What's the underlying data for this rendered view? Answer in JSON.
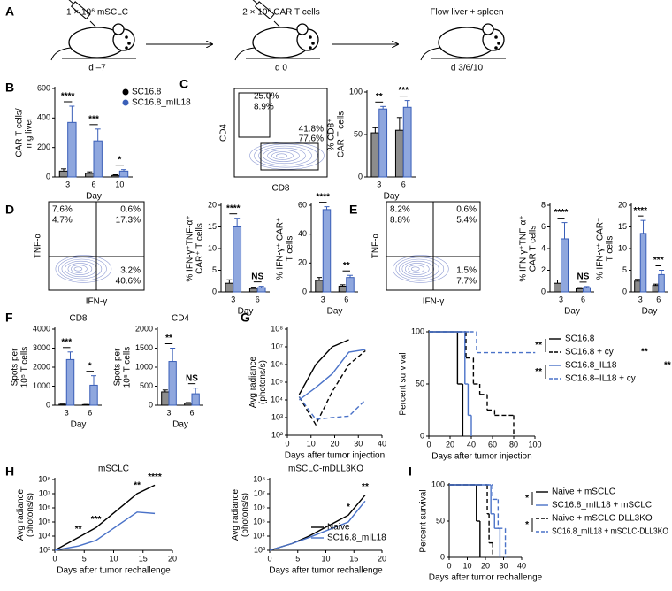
{
  "panel_labels": [
    "A",
    "B",
    "C",
    "D",
    "E",
    "F",
    "G",
    "H",
    "I"
  ],
  "schematic": {
    "steps": [
      {
        "label": "1 × 10⁶ mSCLC",
        "day": "d –7"
      },
      {
        "label": "2 × 10⁶ CAR T cells",
        "day": "d 0"
      },
      {
        "label": "Flow liver + spleen",
        "day": "d 3/6/10"
      }
    ]
  },
  "chart_data": [
    {
      "type": "bar",
      "ylabel": [
        "CAR T cells/",
        "mg liver"
      ],
      "xlabel": "Day",
      "categories": [
        "3",
        "6",
        "10"
      ],
      "ylim": [
        0,
        600
      ],
      "yticks": [
        0,
        200,
        400,
        600
      ],
      "legend": "upper right",
      "series": [
        {
          "name": "SC16.8",
          "color": "#8c8c8c",
          "edge": "#000000",
          "values": [
            40,
            25,
            10
          ],
          "errors": [
            15,
            10,
            5
          ]
        },
        {
          "name": "SC16.8_mIL18",
          "color": "#8fa7de",
          "edge": "#3a5fb8",
          "values": [
            370,
            245,
            40
          ],
          "errors": [
            110,
            80,
            10
          ]
        }
      ],
      "significance": [
        "****",
        "***",
        "*"
      ]
    },
    {
      "type": "flow",
      "xlabel": "CD8",
      "ylabel": "CD4",
      "annotations": [
        "25.0%",
        "8.9%",
        "41.8%",
        "77.6%"
      ],
      "annotation_colors": [
        "#000000",
        "#3a5fb8",
        "#000000",
        "#3a5fb8"
      ]
    },
    {
      "type": "bar",
      "ylabel": [
        "% CD8⁺",
        "CAR T cells"
      ],
      "xlabel": "Day",
      "categories": [
        "3",
        "6"
      ],
      "ylim": [
        0,
        100
      ],
      "yticks": [
        0,
        50,
        100
      ],
      "series": [
        {
          "color": "#8c8c8c",
          "edge": "#000000",
          "values": [
            52,
            55
          ],
          "errors": [
            6,
            15
          ]
        },
        {
          "color": "#8fa7de",
          "edge": "#3a5fb8",
          "values": [
            80,
            82
          ],
          "errors": [
            3,
            8
          ]
        }
      ],
      "significance": [
        "**",
        "***"
      ]
    },
    {
      "type": "flow",
      "xlabel": "IFN-γ",
      "ylabel": "TNF-α",
      "annotations": [
        "7.6%",
        "4.7%",
        "0.6%",
        "17.3%",
        "3.2%",
        "40.6%"
      ],
      "annotation_colors": [
        "#000000",
        "#3a5fb8",
        "#000000",
        "#3a5fb8",
        "#000000",
        "#3a5fb8"
      ]
    },
    {
      "type": "bar",
      "ylabel": [
        "% IFN-γ⁺TNF-α⁺",
        "CAR⁺ T cells"
      ],
      "xlabel": "Day",
      "categories": [
        "3",
        "6"
      ],
      "ylim": [
        0,
        20
      ],
      "yticks": [
        0,
        5,
        10,
        15,
        20
      ],
      "series": [
        {
          "color": "#8c8c8c",
          "edge": "#000000",
          "values": [
            2,
            0.8
          ],
          "errors": [
            0.8,
            0.3
          ]
        },
        {
          "color": "#8fa7de",
          "edge": "#3a5fb8",
          "values": [
            15,
            1
          ],
          "errors": [
            2,
            0.3
          ]
        }
      ],
      "significance": [
        "****",
        "NS"
      ]
    },
    {
      "type": "bar",
      "ylabel": [
        "% IFN-γ⁺ CAR⁺",
        "T cells"
      ],
      "xlabel": "Day",
      "categories": [
        "3",
        "6"
      ],
      "ylim": [
        0,
        60
      ],
      "yticks": [
        0,
        20,
        40,
        60
      ],
      "series": [
        {
          "color": "#8c8c8c",
          "edge": "#000000",
          "values": [
            8,
            4
          ],
          "errors": [
            2,
            1
          ]
        },
        {
          "color": "#8fa7de",
          "edge": "#3a5fb8",
          "values": [
            57,
            10
          ],
          "errors": [
            2,
            1.5
          ]
        }
      ],
      "significance": [
        "****",
        "**"
      ]
    },
    {
      "type": "flow",
      "xlabel": "IFN-γ",
      "ylabel": "TNF-α",
      "annotations": [
        "8.2%",
        "8.8%",
        "0.6%",
        "5.4%",
        "1.5%",
        "7.7%"
      ],
      "annotation_colors": [
        "#000000",
        "#3a5fb8",
        "#000000",
        "#3a5fb8",
        "#000000",
        "#3a5fb8"
      ]
    },
    {
      "type": "bar",
      "ylabel": [
        "% IFN-γ⁺TNF-α⁺",
        "CAR T cells"
      ],
      "xlabel": "Day",
      "categories": [
        "3",
        "6"
      ],
      "ylim": [
        0,
        8
      ],
      "yticks": [
        0,
        2,
        4,
        6,
        8
      ],
      "series": [
        {
          "color": "#8c8c8c",
          "edge": "#000000",
          "values": [
            0.8,
            0.3
          ],
          "errors": [
            0.3,
            0.1
          ]
        },
        {
          "color": "#8fa7de",
          "edge": "#3a5fb8",
          "values": [
            4.9,
            0.4
          ],
          "errors": [
            1.5,
            0.1
          ]
        }
      ],
      "significance": [
        "****",
        "NS"
      ]
    },
    {
      "type": "bar",
      "ylabel": [
        "% IFN-γ⁺ CAR⁻",
        "T cells"
      ],
      "xlabel": "Day",
      "categories": [
        "3",
        "6"
      ],
      "ylim": [
        0,
        20
      ],
      "yticks": [
        0,
        5,
        10,
        15,
        20
      ],
      "series": [
        {
          "color": "#8c8c8c",
          "edge": "#000000",
          "values": [
            2.5,
            1.5
          ],
          "errors": [
            0.4,
            0.3
          ]
        },
        {
          "color": "#8fa7de",
          "edge": "#3a5fb8",
          "values": [
            13.5,
            4
          ],
          "errors": [
            3,
            1
          ]
        }
      ],
      "significance": [
        "****",
        "***"
      ]
    },
    {
      "type": "bar",
      "title": "CD8",
      "ylabel": [
        "Spots per",
        "10⁵ T cells"
      ],
      "xlabel": "Day",
      "categories": [
        "3",
        "6"
      ],
      "ylim": [
        0,
        4000
      ],
      "yticks": [
        0,
        1000,
        2000,
        3000,
        4000
      ],
      "series": [
        {
          "color": "#8c8c8c",
          "edge": "#000000",
          "values": [
            50,
            30
          ],
          "errors": [
            10,
            10
          ]
        },
        {
          "color": "#8fa7de",
          "edge": "#3a5fb8",
          "values": [
            2400,
            1050
          ],
          "errors": [
            400,
            500
          ]
        }
      ],
      "significance": [
        "***",
        "*"
      ]
    },
    {
      "type": "bar",
      "title": "CD4",
      "ylabel": [
        "Spots per",
        "10⁵ T cells"
      ],
      "xlabel": "Day",
      "categories": [
        "3",
        "6"
      ],
      "ylim": [
        0,
        2000
      ],
      "yticks": [
        0,
        500,
        1000,
        1500,
        2000
      ],
      "series": [
        {
          "color": "#8c8c8c",
          "edge": "#000000",
          "values": [
            350,
            50
          ],
          "errors": [
            50,
            20
          ]
        },
        {
          "color": "#8fa7de",
          "edge": "#3a5fb8",
          "values": [
            1150,
            300
          ],
          "errors": [
            350,
            150
          ]
        }
      ],
      "significance": [
        "**",
        "NS"
      ]
    },
    {
      "type": "line",
      "log_y": true,
      "ylabel": [
        "Avg radiance",
        "(photons/s)"
      ],
      "xlabel": "Days after tumor injection",
      "xlim": [
        0,
        40
      ],
      "xticks": [
        0,
        10,
        20,
        30,
        40
      ],
      "ylim": [
        100,
        100000000
      ],
      "yticks": [
        {
          "value": 100,
          "label": "10²"
        },
        {
          "value": 1000,
          "label": "10³"
        },
        {
          "value": 10000,
          "label": "10⁴"
        },
        {
          "value": 100000,
          "label": "10⁵"
        },
        {
          "value": 1000000,
          "label": "10⁶"
        },
        {
          "value": 10000000,
          "label": "10⁷"
        },
        {
          "value": 100000000,
          "label": "10⁸"
        }
      ],
      "x": [
        5,
        12,
        19,
        26,
        33
      ],
      "series": [
        {
          "color": "#000000",
          "dash": false,
          "values": [
            20000,
            1000000,
            10000000,
            25000000,
            null
          ]
        },
        {
          "color": "#000000",
          "dash": true,
          "values": [
            15000,
            400,
            30000,
            1000000,
            6000000
          ]
        },
        {
          "color": "#4a72c8",
          "dash": false,
          "values": [
            10000,
            50000,
            300000,
            5000000,
            7000000
          ]
        },
        {
          "color": "#4a72c8",
          "dash": true,
          "values": [
            15000,
            800,
            1000,
            1200,
            10000
          ]
        }
      ]
    },
    {
      "type": "survival",
      "ylabel": "Percent survival",
      "xlabel": "Days after tumor injection",
      "xlim": [
        0,
        100
      ],
      "xticks": [
        0,
        20,
        40,
        60,
        80,
        100
      ],
      "ylim": [
        0,
        100
      ],
      "yticks": [
        0,
        50,
        100
      ],
      "series": [
        {
          "name": "SC16.8",
          "color": "#000000",
          "dash": false,
          "x": [
            0,
            27,
            32
          ],
          "values": [
            100,
            50,
            0
          ]
        },
        {
          "name": "SC16.8 + cy",
          "color": "#000000",
          "dash": true,
          "x": [
            0,
            35,
            42,
            48,
            55,
            62,
            80
          ],
          "values": [
            100,
            75,
            50,
            40,
            25,
            20,
            0
          ]
        },
        {
          "name": "SC16.8_IL18",
          "color": "#4a72c8",
          "dash": false,
          "x": [
            0,
            34,
            37,
            40
          ],
          "values": [
            100,
            50,
            20,
            0
          ]
        },
        {
          "name": "SC16.8–IL18 + cy",
          "color": "#4a72c8",
          "dash": true,
          "x": [
            0,
            38,
            45,
            100
          ],
          "values": [
            100,
            100,
            80,
            80
          ]
        }
      ],
      "annotations": [
        "**",
        "**",
        "**",
        "**"
      ]
    },
    {
      "type": "line",
      "log_y": true,
      "title": "mSCLC",
      "ylabel": [
        "Avg radiance",
        "(photons/s)"
      ],
      "xlabel": "Days after tumor rechallenge",
      "xlim": [
        0,
        20
      ],
      "xticks": [
        0,
        5,
        10,
        15,
        20
      ],
      "ylim": [
        1000,
        100000000
      ],
      "yticks": [
        {
          "value": 1000,
          "label": "10³"
        },
        {
          "value": 10000,
          "label": "10⁴"
        },
        {
          "value": 100000,
          "label": "10⁵"
        },
        {
          "value": 1000000,
          "label": "10⁶"
        },
        {
          "value": 10000000,
          "label": "10⁷"
        },
        {
          "value": 100000000,
          "label": "10⁸"
        }
      ],
      "x": [
        0,
        4,
        7,
        14,
        17
      ],
      "series": [
        {
          "color": "#000000",
          "dash": false,
          "values": [
            1000,
            8000,
            40000,
            10000000,
            40000000
          ]
        },
        {
          "color": "#4a72c8",
          "dash": false,
          "values": [
            1000,
            2000,
            5000,
            500000,
            400000
          ]
        }
      ],
      "significance": [
        null,
        "**",
        "***",
        "**",
        "****"
      ]
    },
    {
      "type": "line",
      "log_y": true,
      "title": "mSCLC-mDLL3KO",
      "ylabel": [
        "Avg radiance",
        "(photons/s)"
      ],
      "xlabel": "Days after tumor rechallenge",
      "xlim": [
        0,
        20
      ],
      "xticks": [
        0,
        5,
        10,
        15,
        20
      ],
      "ylim": [
        1000,
        100000000
      ],
      "yticks": [
        {
          "value": 1000,
          "label": "10³"
        },
        {
          "value": 10000,
          "label": "10⁴"
        },
        {
          "value": 100000,
          "label": "10⁵"
        },
        {
          "value": 1000000,
          "label": "10⁶"
        },
        {
          "value": 10000000,
          "label": "10⁷"
        },
        {
          "value": 100000000,
          "label": "10⁸"
        }
      ],
      "x": [
        0,
        4,
        7,
        14,
        17
      ],
      "legend": "lower right",
      "series": [
        {
          "name": "Naive",
          "color": "#000000",
          "dash": false,
          "values": [
            1000,
            3000,
            10000,
            300000,
            8000000
          ]
        },
        {
          "name": "SC16.8_mIL18",
          "color": "#4a72c8",
          "dash": false,
          "values": [
            1000,
            3000,
            8000,
            100000,
            3000000
          ]
        }
      ],
      "significance": [
        null,
        null,
        null,
        "*",
        "**"
      ]
    },
    {
      "type": "survival",
      "ylabel": "Percent survival",
      "xlabel": "Days after tumor rechallenge",
      "xlim": [
        0,
        40
      ],
      "xticks": [
        0,
        10,
        20,
        30,
        40
      ],
      "ylim": [
        0,
        100
      ],
      "yticks": [
        0,
        50,
        100
      ],
      "series": [
        {
          "name": "Naive + mSCLC",
          "color": "#000000",
          "dash": false,
          "x": [
            0,
            15,
            17
          ],
          "values": [
            100,
            50,
            0
          ]
        },
        {
          "name": "SC16.8_mIL18 + mSCLC",
          "color": "#4a72c8",
          "dash": false,
          "x": [
            0,
            23,
            25,
            28
          ],
          "values": [
            100,
            60,
            40,
            0
          ]
        },
        {
          "name": "Naive + mSCLC-DLL3KO",
          "color": "#000000",
          "dash": true,
          "x": [
            0,
            21,
            22,
            24
          ],
          "values": [
            100,
            60,
            20,
            0
          ]
        },
        {
          "name": "SC16.8_mIL18 + mSCLC-DLL3KO",
          "color": "#4a72c8",
          "dash": true,
          "x": [
            0,
            24,
            27,
            31
          ],
          "values": [
            100,
            80,
            40,
            0
          ]
        }
      ],
      "annotations": [
        "*",
        "*"
      ]
    }
  ]
}
